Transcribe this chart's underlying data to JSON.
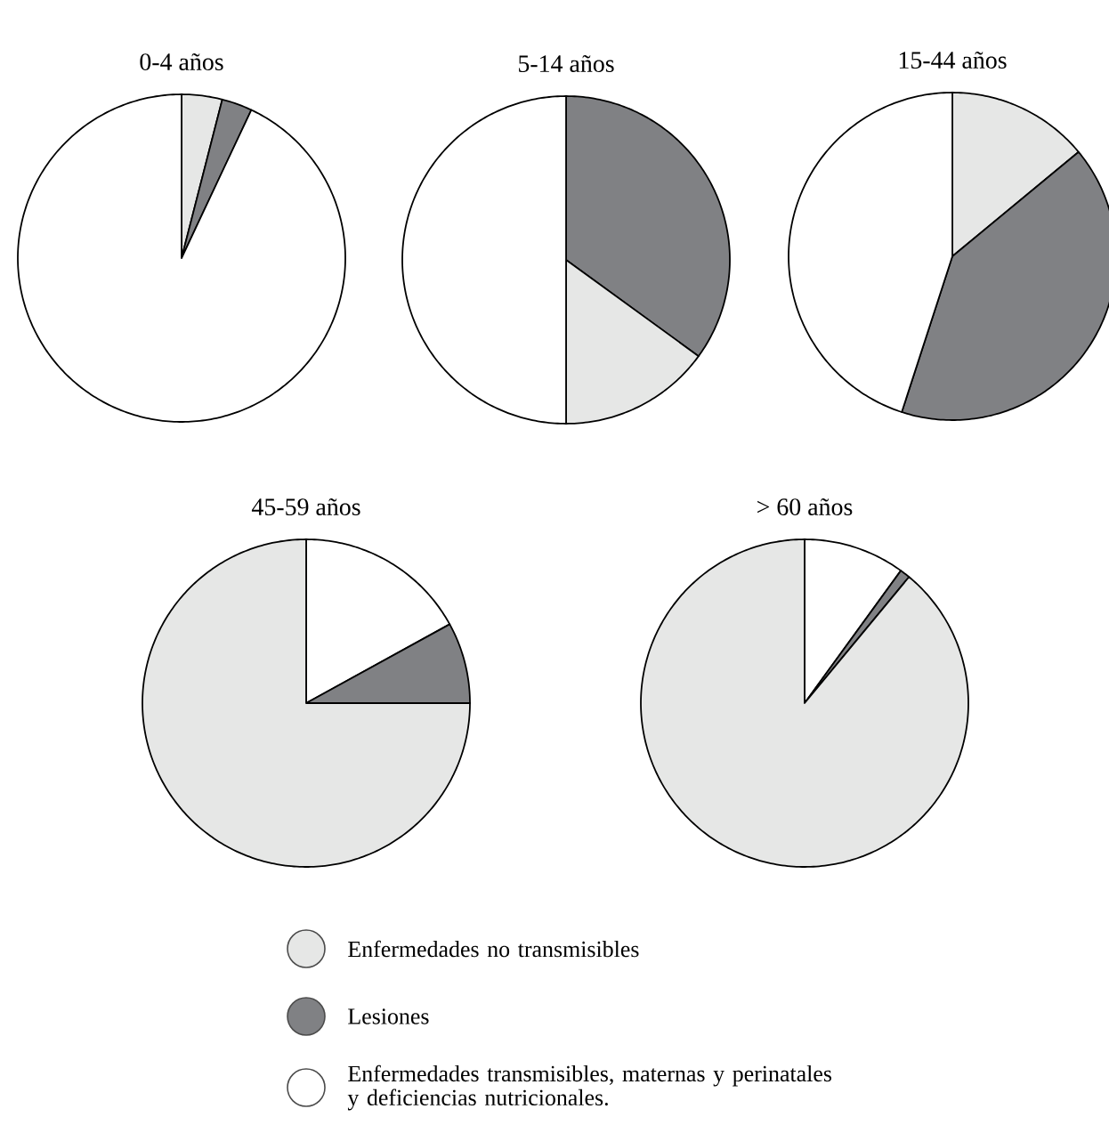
{
  "chart_data": [
    {
      "type": "pie",
      "title": "0-4 años",
      "categories": [
        null,
        null,
        null
      ],
      "values": [
        4,
        3,
        93
      ],
      "colors": [
        "#e6e7e6",
        "#808184",
        "#ffffff"
      ]
    },
    {
      "type": "pie",
      "title": "5-14 años",
      "categories": [
        null,
        null,
        null
      ],
      "values": [
        35,
        15,
        50
      ],
      "colors": [
        "#808184",
        "#e6e7e6",
        "#ffffff"
      ]
    },
    {
      "type": "pie",
      "title": "15-44 años",
      "categories": [
        null,
        null,
        null
      ],
      "values": [
        14,
        41,
        45
      ],
      "colors": [
        "#e6e7e6",
        "#808184",
        "#ffffff"
      ]
    },
    {
      "type": "pie",
      "title": "45-59 años",
      "categories": [
        null,
        null,
        null
      ],
      "values": [
        17,
        8,
        75
      ],
      "colors": [
        "#ffffff",
        "#808184",
        "#e6e7e6"
      ]
    },
    {
      "type": "pie",
      "title": "> 60 años",
      "categories": [
        null,
        null,
        null
      ],
      "values": [
        10,
        1,
        89
      ],
      "colors": [
        "#ffffff",
        "#808184",
        "#e6e7e6"
      ]
    },
    {
      "type": "other",
      "categories": [
        "Enfermedades no transmisibles",
        "Lesiones",
        "Enfermedades transmisibles, maternas y perinatales y deficiencias nutricionales."
      ],
      "colors": [
        "#e6e7e6",
        "#808184",
        "#ffffff"
      ]
    }
  ]
}
